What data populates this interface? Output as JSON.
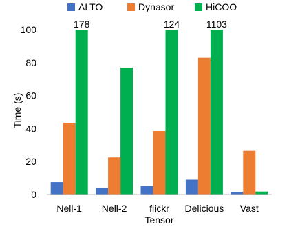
{
  "chart_data": {
    "type": "bar",
    "categories": [
      "Nell-1",
      "Nell-2",
      "flickr",
      "Delicious",
      "Vast"
    ],
    "series": [
      {
        "name": "ALTO",
        "color": "#4472C4",
        "values": [
          7.5,
          4.2,
          5.2,
          9.0,
          1.6
        ]
      },
      {
        "name": "Dynasor",
        "color": "#ED7D31",
        "values": [
          43.5,
          22.5,
          38.5,
          83.0,
          26.5
        ]
      },
      {
        "name": "HiCOO",
        "color": "#00B050",
        "values": [
          100,
          77,
          100,
          100,
          1.8
        ]
      }
    ],
    "annotations": [
      {
        "category": "Nell-1",
        "series": "HiCOO",
        "text": "178"
      },
      {
        "category": "flickr",
        "series": "HiCOO",
        "text": "124"
      },
      {
        "category": "Delicious",
        "series": "HiCOO",
        "text": "1103"
      }
    ],
    "xlabel": "Tensor",
    "ylabel": "Time (s)",
    "ylim": [
      0,
      100
    ],
    "yticks": [
      0,
      20,
      40,
      60,
      80,
      100
    ],
    "grid": false,
    "legend_position": "top"
  }
}
